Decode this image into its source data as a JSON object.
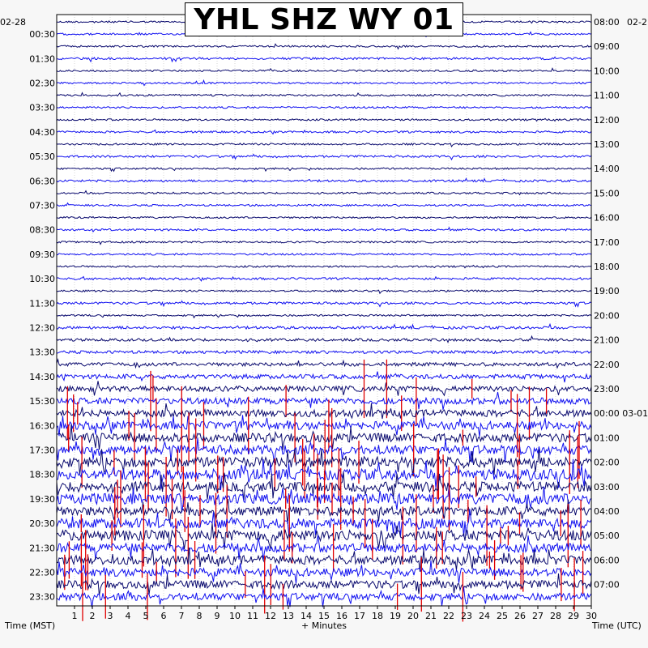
{
  "title": "YHL SHZ WY 01",
  "date_left": "02-28",
  "date_right": "02-2",
  "xlabel_left": "Time (MST)",
  "xlabel_center": "+ Minutes",
  "xlabel_right": "Time (UTC)",
  "chart_data": {
    "type": "helicorder",
    "title": "YHL SHZ WY 01",
    "xlabel": "+ Minutes",
    "xlim": [
      0,
      30
    ],
    "x_ticks": [
      1,
      2,
      3,
      4,
      5,
      6,
      7,
      8,
      9,
      10,
      11,
      12,
      13,
      14,
      15,
      16,
      17,
      18,
      19,
      20,
      21,
      22,
      23,
      24,
      25,
      26,
      27,
      28,
      29,
      30
    ],
    "left_axis_label": "Time (MST)",
    "right_axis_label": "Time (UTC)",
    "left_ticks": [
      "00:30",
      "01:30",
      "02:30",
      "03:30",
      "04:30",
      "05:30",
      "06:30",
      "07:30",
      "08:30",
      "09:30",
      "10:30",
      "11:30",
      "12:30",
      "13:30",
      "14:30",
      "15:30",
      "16:30",
      "17:30",
      "18:30",
      "19:30",
      "20:30",
      "21:30",
      "22:30",
      "23:30"
    ],
    "right_ticks": [
      "08:00",
      "09:00",
      "10:00",
      "11:00",
      "12:00",
      "13:00",
      "14:00",
      "15:00",
      "16:00",
      "17:00",
      "18:00",
      "19:00",
      "20:00",
      "21:00",
      "22:00",
      "23:00",
      "00:00 03-01",
      "01:00",
      "02:00",
      "03:00",
      "04:00",
      "05:00",
      "06:00",
      "07:00"
    ],
    "lines_count": 48,
    "minutes_per_line": 30,
    "grid": true,
    "colors": {
      "odd_trace": "#0a0a6e",
      "even_trace": "#1010f0",
      "clipped": "#e00000"
    },
    "activity_by_line": [
      1,
      1,
      1,
      1.2,
      1,
      1,
      1,
      1,
      1,
      1.1,
      1,
      1.2,
      1,
      1.2,
      1,
      1,
      1,
      1.1,
      1,
      1,
      1,
      1.2,
      1,
      1.3,
      1,
      1.5,
      1.5,
      1.6,
      2,
      2.5,
      3,
      3.5,
      4,
      4.5,
      5,
      5,
      5.5,
      6,
      5.5,
      6,
      5,
      5.5,
      6,
      5,
      5,
      4.5,
      4.5,
      4
    ]
  }
}
